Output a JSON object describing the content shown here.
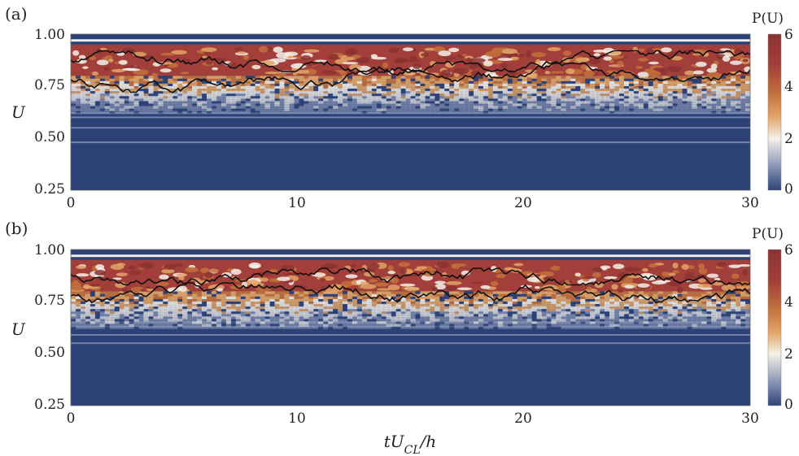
{
  "xlabel": "tU_CL/h",
  "chart_data": [
    {
      "type": "heatmap",
      "panel_label": "(a)",
      "ylabel": "U",
      "colorbar_title": "P(U)",
      "xlim": [
        0,
        30
      ],
      "ylim": [
        0.25,
        1.0
      ],
      "x_ticks": [
        "0",
        "10",
        "20",
        "30"
      ],
      "y_ticks": [
        "0.25",
        "0.50",
        "0.75",
        "1.00"
      ],
      "colorbar_range": [
        0,
        6
      ],
      "colorbar_ticks": [
        "0",
        "2",
        "4",
        "6"
      ],
      "colormap": [
        "#2c4277",
        "#8794b5",
        "#f5f1ea",
        "#e2a566",
        "#c2713c",
        "#a23f3a",
        "#8b3232"
      ],
      "high_band": [
        0.8,
        0.95
      ],
      "flat_level": 0.97,
      "thin_lines": [
        0.48,
        0.55,
        0.6,
        0.62
      ],
      "upper_curve_range": [
        0.82,
        0.92
      ],
      "lower_curve_range": [
        0.72,
        0.86
      ]
    },
    {
      "type": "heatmap",
      "panel_label": "(b)",
      "ylabel": "U",
      "colorbar_title": "P(U)",
      "xlim": [
        0,
        30
      ],
      "ylim": [
        0.25,
        1.0
      ],
      "x_ticks": [
        "0",
        "10",
        "20",
        "30"
      ],
      "y_ticks": [
        "0.25",
        "0.50",
        "0.75",
        "1.00"
      ],
      "colorbar_range": [
        0,
        6
      ],
      "colorbar_ticks": [
        "0",
        "2",
        "4",
        "6"
      ],
      "colormap": [
        "#2c4277",
        "#8794b5",
        "#f5f1ea",
        "#e2a566",
        "#c2713c",
        "#a23f3a",
        "#8b3232"
      ],
      "high_band": [
        0.8,
        0.95
      ],
      "flat_level": 0.97,
      "thin_lines": [
        0.55,
        0.59,
        0.63,
        0.65
      ],
      "upper_curve_range": [
        0.83,
        0.91
      ],
      "lower_curve_range": [
        0.74,
        0.84
      ]
    }
  ]
}
